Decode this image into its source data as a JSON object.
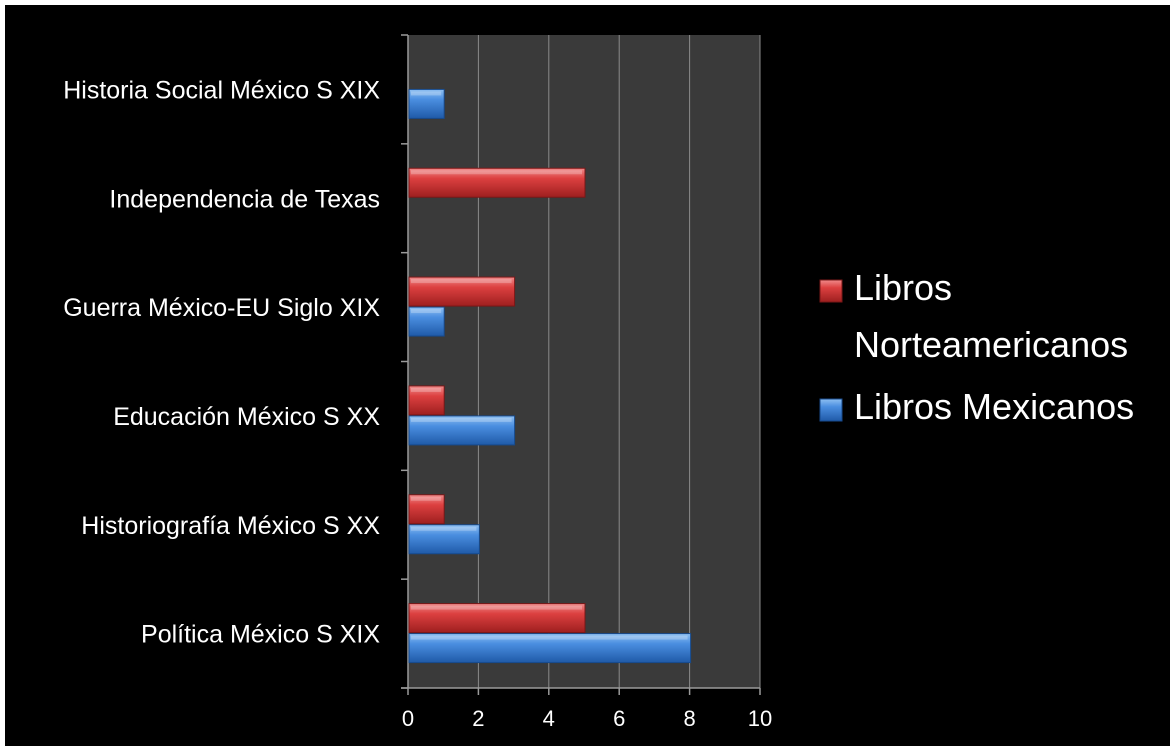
{
  "chart_data": {
    "type": "bar",
    "orientation": "horizontal",
    "categories": [
      "Política México S XIX",
      "Historiografía México S XX",
      "Educación México S XX",
      "Guerra México-EU Siglo XIX",
      "Independencia de Texas",
      "Historia Social México S XIX"
    ],
    "series": [
      {
        "name": "Libros Mexicanos",
        "values": [
          8,
          2,
          3,
          1,
          0,
          1
        ],
        "color": "#3d7fd6"
      },
      {
        "name": "Libros Norteamericanos",
        "values": [
          5,
          1,
          1,
          3,
          5,
          0
        ],
        "color": "#d43a3a"
      }
    ],
    "legend_order": [
      1,
      0
    ],
    "legend_lines": [
      [
        "Libros",
        "Norteamericanos"
      ],
      [
        "Libros Mexicanos"
      ]
    ],
    "xlim": [
      0,
      10
    ],
    "xticks": [
      0,
      2,
      4,
      6,
      8,
      10
    ],
    "title": "",
    "xlabel": "",
    "ylabel": "",
    "grid": true,
    "legend_position": "right",
    "plot_background": "#3a3a3a",
    "background": "#000000"
  }
}
